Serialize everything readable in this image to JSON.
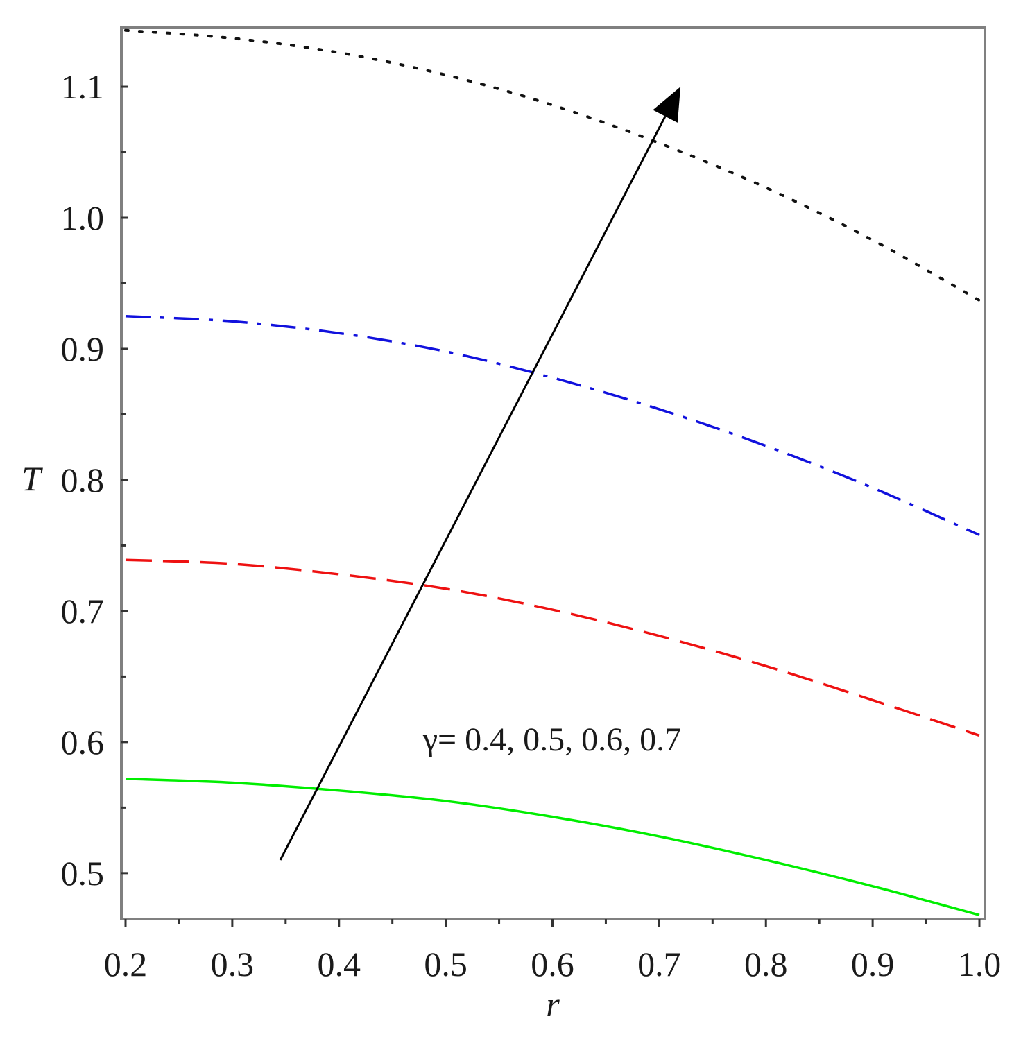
{
  "chart_data": {
    "type": "line",
    "xlabel": "r",
    "ylabel": "T",
    "xlim": [
      0.2,
      1.0
    ],
    "ylim": [
      0.465,
      1.145
    ],
    "grid": false,
    "x_ticks": [
      "0.2",
      "0.3",
      "0.4",
      "0.5",
      "0.6",
      "0.7",
      "0.8",
      "0.9",
      "1.0"
    ],
    "y_ticks": [
      "0.5",
      "0.6",
      "0.7",
      "0.8",
      "0.9",
      "1.0",
      "1.1"
    ],
    "series": [
      {
        "color": "#00ee00",
        "dash": "solid",
        "x": [
          0.2,
          0.3,
          0.4,
          0.5,
          0.6,
          0.7,
          0.8,
          0.9,
          1.0
        ],
        "y": [
          0.572,
          0.569,
          0.563,
          0.555,
          0.543,
          0.528,
          0.51,
          0.49,
          0.468
        ]
      },
      {
        "color": "#ee1111",
        "dash": "dash",
        "x": [
          0.2,
          0.3,
          0.4,
          0.5,
          0.6,
          0.7,
          0.8,
          0.9,
          1.0
        ],
        "y": [
          0.739,
          0.736,
          0.728,
          0.717,
          0.701,
          0.681,
          0.658,
          0.632,
          0.605
        ]
      },
      {
        "color": "#1111dd",
        "dash": "dashdot",
        "x": [
          0.2,
          0.3,
          0.4,
          0.5,
          0.6,
          0.7,
          0.8,
          0.9,
          1.0
        ],
        "y": [
          0.925,
          0.921,
          0.912,
          0.898,
          0.878,
          0.854,
          0.826,
          0.794,
          0.758
        ]
      },
      {
        "color": "#111111",
        "dash": "dot",
        "x": [
          0.2,
          0.3,
          0.4,
          0.5,
          0.6,
          0.7,
          0.8,
          0.9,
          1.0
        ],
        "y": [
          1.143,
          1.137,
          1.126,
          1.109,
          1.086,
          1.057,
          1.023,
          0.983,
          0.937
        ]
      }
    ],
    "annotations": [
      {
        "text": "γ= 0.4, 0.5, 0.6, 0.7",
        "x": 0.48,
        "y": 0.6
      }
    ],
    "arrow": {
      "from": [
        0.345,
        0.51
      ],
      "to": [
        0.72,
        1.1
      ]
    }
  }
}
